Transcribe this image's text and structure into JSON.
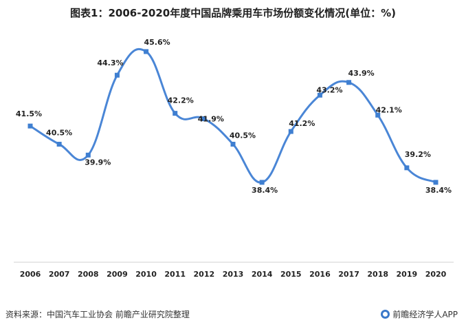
{
  "header": {
    "title": "图表1：2006-2020年度中国品牌乘用车市场份额变化情况(单位：%)"
  },
  "footer": {
    "source": "资料来源：中国汽车工业协会 前瞻产业研究院整理",
    "brand": "前瞻经济学人APP",
    "brand_icon": "qianzhan-logo-icon"
  },
  "colors": {
    "line": "#4a86d6",
    "marker": "#3f7fd1",
    "axis": "#d0d0d0"
  },
  "chart_data": {
    "type": "line",
    "categories": [
      "2006",
      "2007",
      "2008",
      "2009",
      "2010",
      "2011",
      "2012",
      "2013",
      "2014",
      "2015",
      "2016",
      "2017",
      "2018",
      "2019",
      "2020"
    ],
    "series": [
      {
        "values": [
          41.5,
          40.5,
          39.9,
          44.3,
          45.6,
          42.2,
          41.9,
          40.5,
          38.4,
          41.2,
          43.2,
          43.9,
          42.1,
          39.2,
          38.4
        ],
        "labels": [
          "41.5%",
          "40.5%",
          "39.9%",
          "44.3%",
          "45.6%",
          "42.2%",
          "41.9%",
          "40.5%",
          "38.4%",
          "41.2%",
          "43.2%",
          "43.9%",
          "42.1%",
          "39.2%",
          "38.4%"
        ]
      }
    ],
    "title": "2006-2020年度中国品牌乘用车市场份额变化情况",
    "xlabel": "",
    "ylabel": "",
    "ylim": [
      34,
      47
    ],
    "y_axis_visible": false,
    "grid": false,
    "legend": "none",
    "smooth": true
  }
}
